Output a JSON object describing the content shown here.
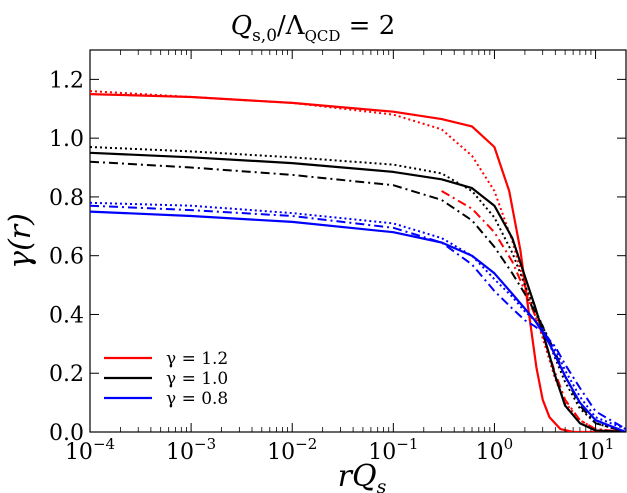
{
  "chart_data": {
    "type": "line",
    "title": "Q_{s,0}/Λ_QCD = 2",
    "title_parts": {
      "q": "Q",
      "sub": "s,0",
      "mid": "/Λ",
      "sub2": "QCD",
      "tail": " = 2"
    },
    "xlabel": "rQ_s",
    "xlabel_parts": {
      "main": "rQ",
      "sub": "s"
    },
    "ylabel": "γ(r)",
    "x_scale": "log",
    "xlim": [
      0.0001,
      20
    ],
    "ylim": [
      0.0,
      1.3
    ],
    "grid": false,
    "legend_position": "lower-left",
    "x_ticks": [
      {
        "value": 0.0001,
        "base": "10",
        "exp": "−4"
      },
      {
        "value": 0.001,
        "base": "10",
        "exp": "−3"
      },
      {
        "value": 0.01,
        "base": "10",
        "exp": "−2"
      },
      {
        "value": 0.1,
        "base": "10",
        "exp": "−1"
      },
      {
        "value": 1,
        "base": "10",
        "exp": "0"
      },
      {
        "value": 10,
        "base": "10",
        "exp": "1"
      }
    ],
    "y_ticks": [
      "0.0",
      "0.2",
      "0.4",
      "0.6",
      "0.8",
      "1.0",
      "1.2"
    ],
    "legend": [
      {
        "label": "γ = 1.2",
        "color": "#ff0000"
      },
      {
        "label": "γ = 1.0",
        "color": "#000000"
      },
      {
        "label": "γ = 0.8",
        "color": "#0000ff"
      }
    ],
    "series": [
      {
        "color": "#ff0000",
        "style": "solid",
        "x": [
          0.0001,
          0.001,
          0.01,
          0.1,
          0.3,
          0.6,
          1.0,
          1.4,
          1.8,
          2.2,
          2.6,
          3.0,
          3.5,
          4.5,
          6,
          8,
          20
        ],
        "y": [
          1.15,
          1.14,
          1.12,
          1.09,
          1.065,
          1.04,
          0.97,
          0.82,
          0.62,
          0.4,
          0.22,
          0.11,
          0.05,
          0.01,
          0.0,
          0.0,
          0.0
        ]
      },
      {
        "color": "#ff0000",
        "style": "dotted",
        "x": [
          0.0001,
          0.001,
          0.01,
          0.1,
          0.3,
          0.6,
          1.0,
          1.5,
          2.0,
          2.5,
          3.0,
          4.0,
          5.0,
          7.0,
          10,
          20
        ],
        "y": [
          1.16,
          1.14,
          1.12,
          1.08,
          1.03,
          0.94,
          0.82,
          0.65,
          0.5,
          0.4,
          0.32,
          0.18,
          0.1,
          0.04,
          0.01,
          0.0
        ]
      },
      {
        "color": "#ff0000",
        "style": "dashdot",
        "x": [
          0.3,
          0.6,
          1.0,
          1.5,
          2.0,
          2.5,
          3.0,
          4.0,
          5.0,
          7.0,
          10,
          20
        ],
        "y": [
          0.82,
          0.76,
          0.68,
          0.58,
          0.48,
          0.4,
          0.33,
          0.2,
          0.11,
          0.04,
          0.01,
          0.0
        ]
      },
      {
        "color": "#000000",
        "style": "solid",
        "x": [
          0.0001,
          0.001,
          0.01,
          0.1,
          0.3,
          0.6,
          1.0,
          1.5,
          2.0,
          2.5,
          3.0,
          3.5,
          4.0,
          5.0,
          7.0,
          10,
          20
        ],
        "y": [
          0.95,
          0.935,
          0.915,
          0.885,
          0.86,
          0.83,
          0.77,
          0.66,
          0.53,
          0.43,
          0.34,
          0.26,
          0.19,
          0.09,
          0.03,
          0.005,
          0.0
        ]
      },
      {
        "color": "#000000",
        "style": "dotted",
        "x": [
          0.0001,
          0.001,
          0.01,
          0.1,
          0.3,
          0.6,
          1.0,
          1.5,
          2.0,
          2.5,
          3.0,
          4.0,
          5.0,
          7.0,
          10,
          20
        ],
        "y": [
          0.97,
          0.955,
          0.935,
          0.91,
          0.88,
          0.82,
          0.73,
          0.61,
          0.5,
          0.42,
          0.36,
          0.25,
          0.17,
          0.08,
          0.03,
          0.0
        ]
      },
      {
        "color": "#000000",
        "style": "dashdot",
        "x": [
          0.0001,
          0.001,
          0.01,
          0.1,
          0.3,
          0.6,
          1.0,
          1.5,
          2.0,
          2.5,
          3.0,
          4.0,
          5.0,
          7.0,
          10,
          20
        ],
        "y": [
          0.92,
          0.9,
          0.875,
          0.84,
          0.79,
          0.72,
          0.63,
          0.54,
          0.47,
          0.41,
          0.36,
          0.27,
          0.19,
          0.09,
          0.03,
          0.0
        ]
      },
      {
        "color": "#0000ff",
        "style": "solid",
        "x": [
          0.0001,
          0.001,
          0.01,
          0.1,
          0.3,
          0.6,
          1.0,
          1.5,
          2.0,
          2.5,
          3.0,
          3.5,
          4.0,
          5.0,
          7.0,
          10,
          20
        ],
        "y": [
          0.75,
          0.735,
          0.715,
          0.68,
          0.645,
          0.6,
          0.54,
          0.47,
          0.42,
          0.38,
          0.34,
          0.3,
          0.26,
          0.19,
          0.1,
          0.04,
          0.0
        ]
      },
      {
        "color": "#0000ff",
        "style": "dotted",
        "x": [
          0.0001,
          0.001,
          0.01,
          0.1,
          0.3,
          0.6,
          1.0,
          1.5,
          2.0,
          2.5,
          3.0,
          4.0,
          5.0,
          7.0,
          10,
          20
        ],
        "y": [
          0.78,
          0.77,
          0.745,
          0.71,
          0.66,
          0.6,
          0.52,
          0.46,
          0.41,
          0.38,
          0.35,
          0.28,
          0.21,
          0.12,
          0.05,
          0.01
        ]
      },
      {
        "color": "#0000ff",
        "style": "dashdot",
        "x": [
          0.0001,
          0.001,
          0.01,
          0.1,
          0.3,
          0.6,
          1.0,
          1.5,
          2.0,
          2.5,
          3.0,
          4.0,
          5.0,
          7.0,
          10,
          20
        ],
        "y": [
          0.77,
          0.755,
          0.735,
          0.695,
          0.645,
          0.57,
          0.48,
          0.42,
          0.38,
          0.36,
          0.34,
          0.29,
          0.23,
          0.15,
          0.07,
          0.01
        ]
      }
    ]
  }
}
